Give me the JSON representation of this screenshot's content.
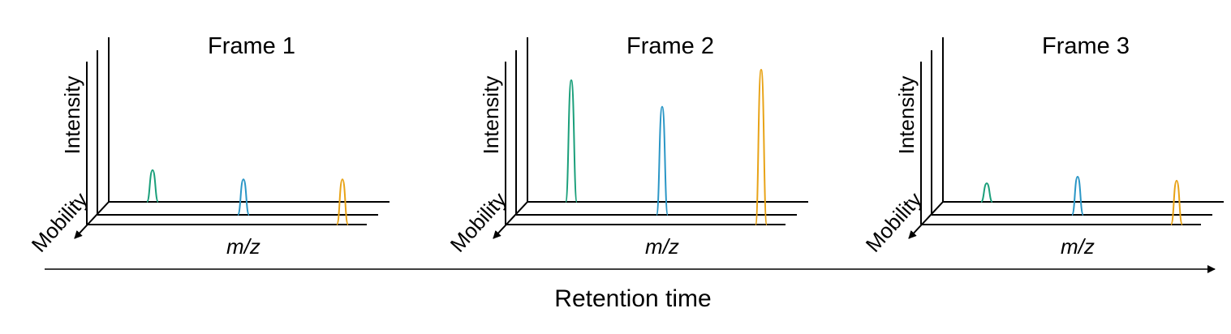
{
  "frames": [
    {
      "title": "Frame 1",
      "y_label": "Intensity",
      "depth_label": "Mobility",
      "x_label": "m/z",
      "peaks": [
        {
          "color": "#1a9f7a",
          "intensity": 0.24
        },
        {
          "color": "#2a96c6",
          "intensity": 0.17
        },
        {
          "color": "#e8a317",
          "intensity": 0.17
        }
      ]
    },
    {
      "title": "Frame 2",
      "y_label": "Intensity",
      "depth_label": "Mobility",
      "x_label": "m/z",
      "peaks": [
        {
          "color": "#1a9f7a",
          "intensity": 0.92
        },
        {
          "color": "#2a96c6",
          "intensity": 0.72
        },
        {
          "color": "#e8a317",
          "intensity": 1.0
        }
      ]
    },
    {
      "title": "Frame 3",
      "y_label": "Intensity",
      "depth_label": "Mobility",
      "x_label": "m/z",
      "peaks": [
        {
          "color": "#1a9f7a",
          "intensity": 0.14
        },
        {
          "color": "#2a96c6",
          "intensity": 0.19
        },
        {
          "color": "#e8a317",
          "intensity": 0.16
        }
      ]
    }
  ],
  "time_axis": {
    "label": "Retention time"
  }
}
